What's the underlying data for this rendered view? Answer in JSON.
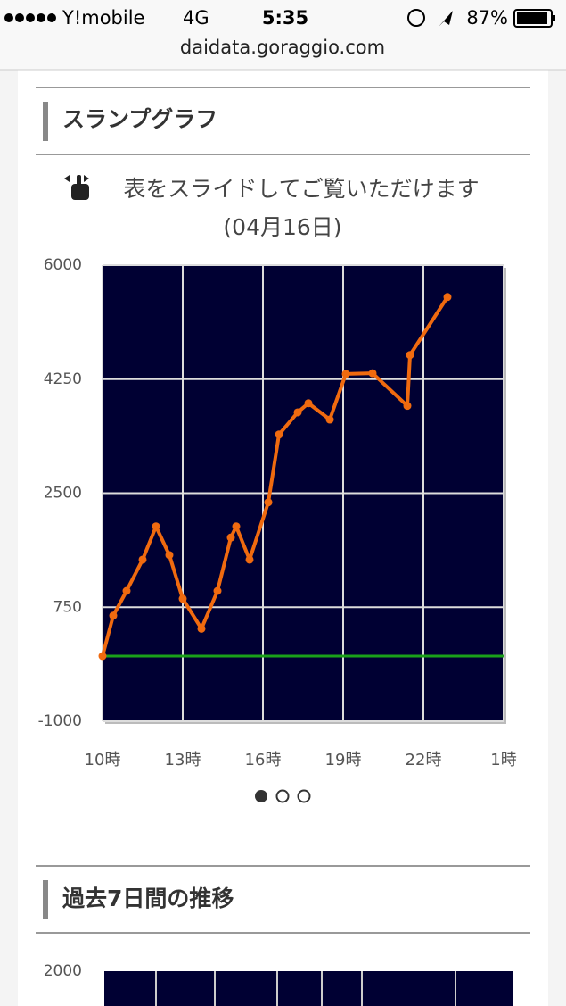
{
  "status_bar": {
    "carrier": "Y!mobile",
    "network": "4G",
    "time": "5:35",
    "battery": "87%"
  },
  "url": "daidata.goraggio.com",
  "section_title": "スランプグラフ",
  "instruction": "表をスライドしてご覧いただけます",
  "chart_data": {
    "type": "line",
    "title": "(04月16日)",
    "x": [
      10,
      10.4,
      10.9,
      11.5,
      12,
      12.5,
      13,
      13.7,
      14.3,
      14.8,
      15,
      15.5,
      16.2,
      16.6,
      17.3,
      17.7,
      18.5,
      19.1,
      20.1,
      21.4,
      21.5,
      22.9
    ],
    "values": [
      0,
      620,
      1000,
      1480,
      1990,
      1550,
      880,
      420,
      1000,
      1820,
      1990,
      1480,
      2360,
      3400,
      3740,
      3880,
      3630,
      4330,
      4340,
      3840,
      4620,
      5510
    ],
    "color": "#f06a0f",
    "xlim": [
      10,
      25
    ],
    "xticks": [
      {
        "value": 10,
        "label": "10時"
      },
      {
        "value": 13,
        "label": "13時"
      },
      {
        "value": 16,
        "label": "16時"
      },
      {
        "value": 19,
        "label": "19時"
      },
      {
        "value": 22,
        "label": "22時"
      },
      {
        "value": 25,
        "label": "1時"
      }
    ],
    "ylim": [
      -1000,
      6000
    ],
    "yticks": [
      -1000,
      750,
      2500,
      4250,
      6000
    ],
    "hline": 0,
    "hline_color": "#1aa21a",
    "background": "#000033",
    "grid": true
  },
  "next_section": {
    "title": "過去7日間の推移",
    "ytick": 2000
  }
}
